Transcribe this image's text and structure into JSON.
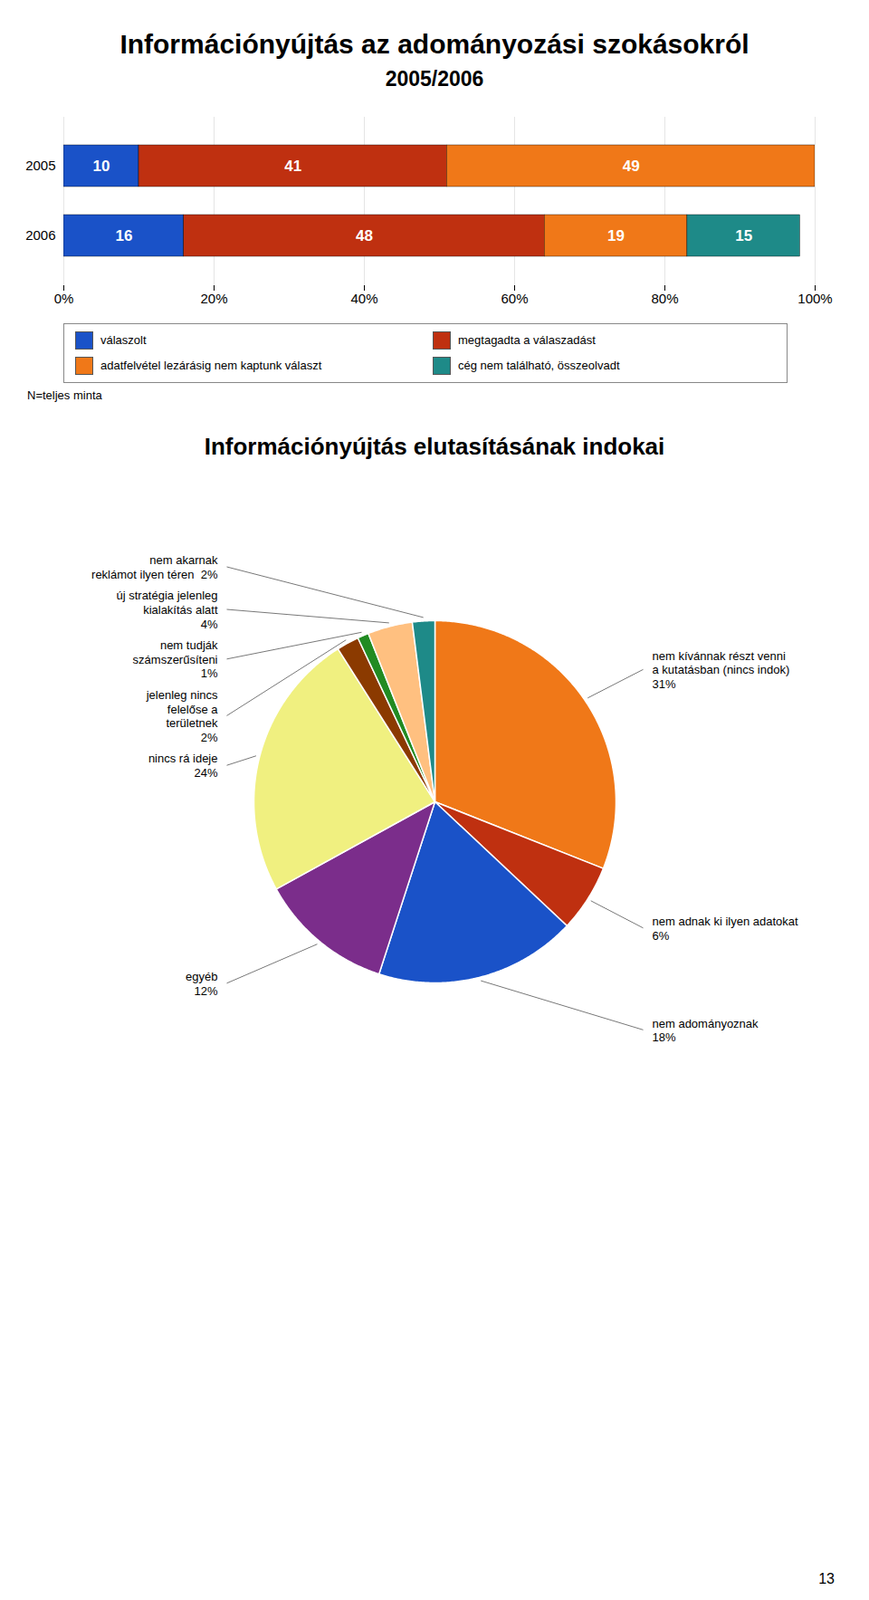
{
  "chart_data": [
    {
      "type": "bar",
      "title": "Információnyújtás az adományozási szokásokról",
      "subtitle": "2005/2006",
      "orientation": "horizontal",
      "stacked": true,
      "categories": [
        "2005",
        "2006"
      ],
      "series": [
        {
          "name": "válaszolt",
          "color": "#1a52c8",
          "values": [
            10,
            16
          ]
        },
        {
          "name": "megtagadta a válaszadást",
          "color": "#bf3010",
          "values": [
            41,
            48
          ]
        },
        {
          "name": "adatfelvétel lezárásig nem kaptunk választ",
          "color": "#f07818",
          "values": [
            49,
            19
          ]
        },
        {
          "name": "cég nem található, összeolvadt",
          "color": "#1e8a88",
          "values": [
            0,
            15
          ]
        }
      ],
      "xlim": [
        0,
        100
      ],
      "xticks": [
        {
          "value": 0,
          "label": "0%"
        },
        {
          "value": 20,
          "label": "20%"
        },
        {
          "value": 40,
          "label": "40%"
        },
        {
          "value": 60,
          "label": "60%"
        },
        {
          "value": 80,
          "label": "80%"
        },
        {
          "value": 100,
          "label": "100%"
        }
      ],
      "grid": true,
      "data_labels": true,
      "legend": "bottom",
      "annotations": [
        "N=teljes minta"
      ]
    },
    {
      "type": "pie",
      "title": "Információnyújtás elutasításának indokai",
      "categories": [
        "nem kívánnak részt venni\na kutatásban (nincs indok)\n31%",
        "nem adnak ki ilyen adatokat\n6%",
        "nem adományoznak\n18%",
        "egyéb\n12%",
        "nincs rá ideje\n24%",
        "jelenleg nincs\nfelelőse a\nterületnek\n2%",
        "nem tudják\nszámszerűsíteni\n1%",
        "új stratégia jelenleg\nkialakítás alatt\n4%",
        "nem akarnak\nreklámot ilyen téren  2%"
      ],
      "values": [
        31,
        6,
        18,
        12,
        24,
        2,
        1,
        4,
        2
      ],
      "colors": [
        "#f07818",
        "#bf3010",
        "#1a52c8",
        "#7b2d8b",
        "#f0f080",
        "#8b3a00",
        "#228b22",
        "#ffc080",
        "#1e8a88"
      ],
      "annotations": [
        "13"
      ]
    }
  ]
}
